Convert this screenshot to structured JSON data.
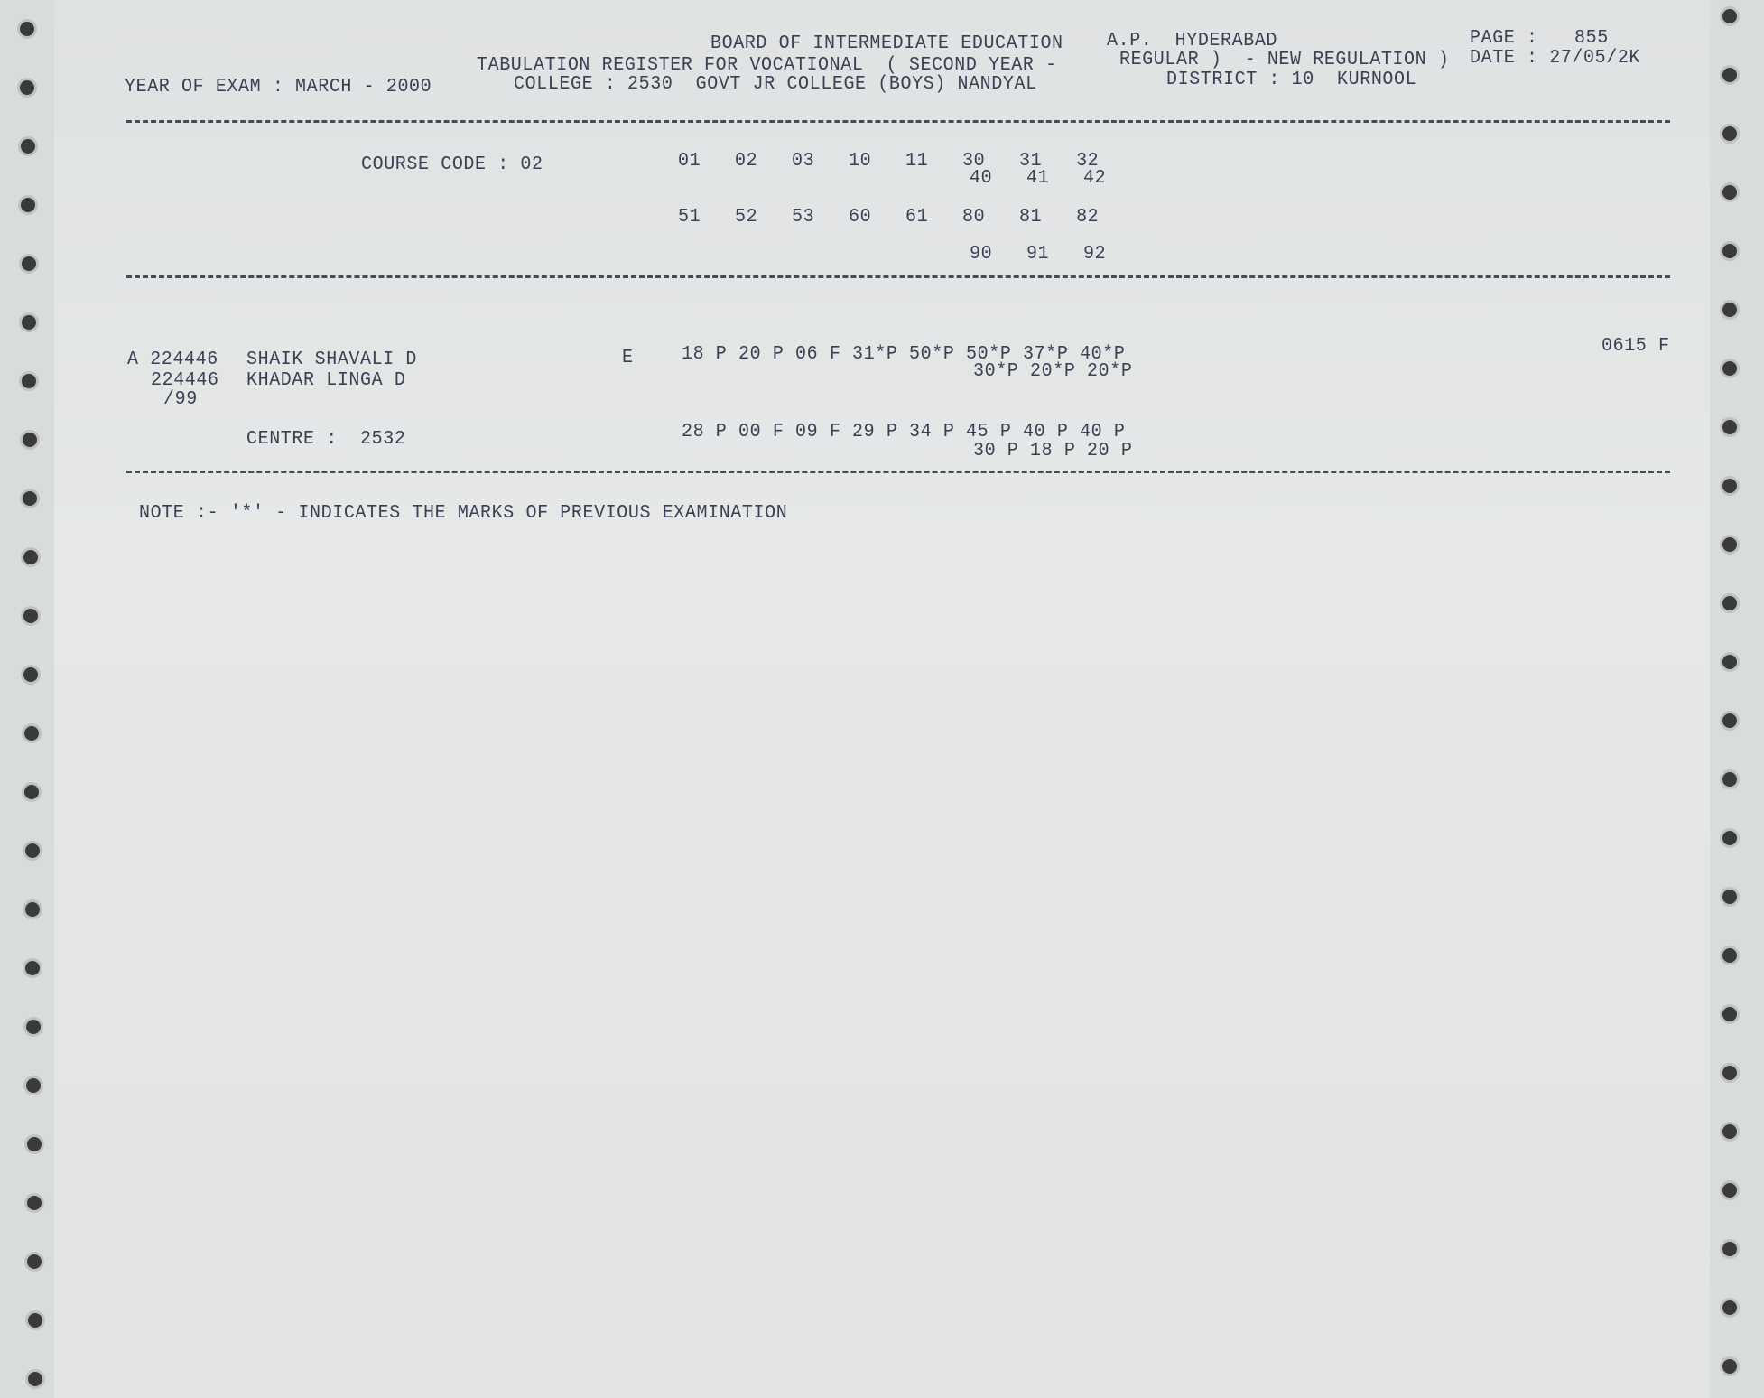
{
  "header": {
    "board": "BOARD OF INTERMEDIATE EDUCATION",
    "location": "A.P.  HYDERABAD",
    "page_label": "PAGE :",
    "page_number": "855",
    "register_title": "TABULATION REGISTER FOR VOCATIONAL  ( SECOND YEAR -",
    "regulation": "REGULAR )  - NEW REGULATION )",
    "date": "DATE : 27/05/2K",
    "year_of_exam": "YEAR OF EXAM : MARCH - 2000",
    "college": "COLLEGE : 2530  GOVT JR COLLEGE (BOYS) NANDYAL",
    "district": "DISTRICT : 10  KURNOOL"
  },
  "course": {
    "label": "COURSE CODE : 02",
    "row1": "01   02   03   10   11   30   31   32",
    "row2": "40   41   42",
    "row3": "51   52   53   60   61   80   81   82",
    "row4": "90   91   92"
  },
  "student": {
    "hall_ticket": "A 224446",
    "name": "SHAIK SHAVALI D",
    "id2": "224446",
    "father_name": "KHADAR LINGA D",
    "year_suffix": "/99",
    "medium": "E",
    "marks_row1": "18 P 20 P 06 F 31*P 50*P 50*P 37*P 40*P",
    "marks_row2": "30*P 20*P 20*P",
    "centre": "CENTRE :  2532",
    "marks_row3": "28 P 00 F 09 F 29 P 34 P 45 P 40 P 40 P",
    "marks_row4": "30 P 18 P 20 P",
    "total_result": "0615 F"
  },
  "note": "NOTE :- '*' - INDICATES THE MARKS OF PREVIOUS EXAMINATION"
}
